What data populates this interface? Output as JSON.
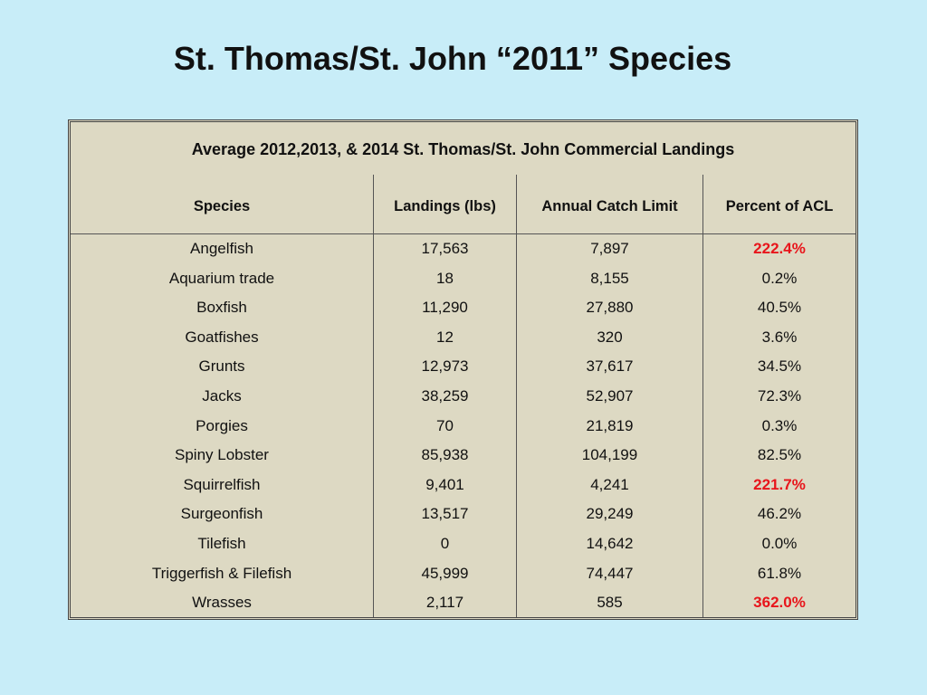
{
  "title": "St. Thomas/St. John “2011” Species",
  "table": {
    "caption": "Average 2012,2013, & 2014 St. Thomas/St. John Commercial Landings",
    "headers": [
      "Species",
      "Landings (lbs)",
      "Annual Catch Limit",
      "Percent of ACL"
    ],
    "highlight_color": "#e8151b",
    "rows": [
      {
        "species": "Angelfish",
        "landings": "17,563",
        "acl": "7,897",
        "percent": "222.4%",
        "over": true
      },
      {
        "species": "Aquarium trade",
        "landings": "18",
        "acl": "8,155",
        "percent": "0.2%",
        "over": false
      },
      {
        "species": "Boxfish",
        "landings": "11,290",
        "acl": "27,880",
        "percent": "40.5%",
        "over": false
      },
      {
        "species": "Goatfishes",
        "landings": "12",
        "acl": "320",
        "percent": "3.6%",
        "over": false
      },
      {
        "species": "Grunts",
        "landings": "12,973",
        "acl": "37,617",
        "percent": "34.5%",
        "over": false
      },
      {
        "species": "Jacks",
        "landings": "38,259",
        "acl": "52,907",
        "percent": "72.3%",
        "over": false
      },
      {
        "species": "Porgies",
        "landings": "70",
        "acl": "21,819",
        "percent": "0.3%",
        "over": false
      },
      {
        "species": "Spiny Lobster",
        "landings": "85,938",
        "acl": "104,199",
        "percent": "82.5%",
        "over": false
      },
      {
        "species": "Squirrelfish",
        "landings": "9,401",
        "acl": "4,241",
        "percent": "221.7%",
        "over": true
      },
      {
        "species": "Surgeonfish",
        "landings": "13,517",
        "acl": "29,249",
        "percent": "46.2%",
        "over": false
      },
      {
        "species": "Tilefish",
        "landings": "0",
        "acl": "14,642",
        "percent": "0.0%",
        "over": false
      },
      {
        "species": "Triggerfish & Filefish",
        "landings": "45,999",
        "acl": "74,447",
        "percent": "61.8%",
        "over": false
      },
      {
        "species": "Wrasses",
        "landings": "2,117",
        "acl": "585",
        "percent": "362.0%",
        "over": true
      }
    ]
  }
}
